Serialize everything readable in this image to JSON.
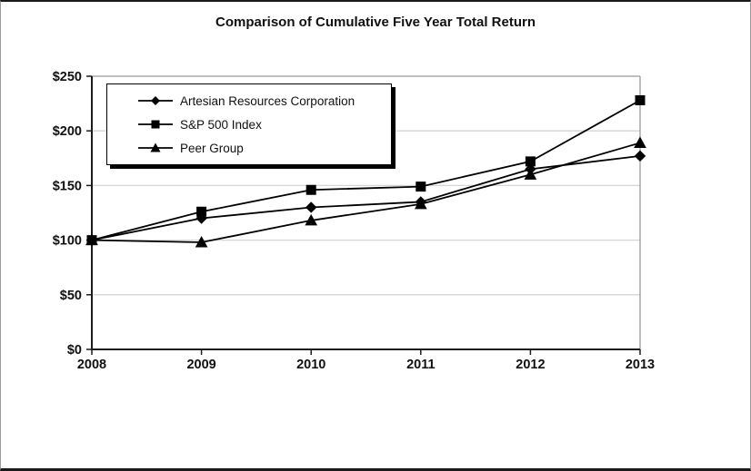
{
  "title": "Comparison of Cumulative Five Year Total Return",
  "chart_data": {
    "type": "line",
    "title": "Comparison of Cumulative Five Year Total Return",
    "categories": [
      "2008",
      "2009",
      "2010",
      "2011",
      "2012",
      "2013"
    ],
    "series": [
      {
        "name": "Artesian Resources Corporation",
        "marker": "diamond",
        "color": "#000000",
        "values": [
          100,
          120,
          130,
          135,
          165,
          177
        ]
      },
      {
        "name": "S&P 500 Index",
        "marker": "square",
        "color": "#000000",
        "values": [
          100,
          126,
          146,
          149,
          172,
          228
        ]
      },
      {
        "name": "Peer Group",
        "marker": "triangle",
        "color": "#000000",
        "values": [
          100,
          98,
          118,
          133,
          160,
          189
        ]
      }
    ],
    "ylim": [
      0,
      250
    ],
    "ytick_step": 50,
    "ytick_labels": [
      "$0",
      "$50",
      "$100",
      "$150",
      "$200",
      "$250"
    ],
    "xlabel": "",
    "ylabel": "",
    "grid": "horizontal-only",
    "gridline_color": "#d6d6d6",
    "axis_color": "#1c1c1c",
    "line_color": "#000000",
    "legend_position": "top-left",
    "legend_entries": [
      "Artesian Resources Corporation",
      "S&P 500 Index",
      "Peer Group"
    ]
  }
}
